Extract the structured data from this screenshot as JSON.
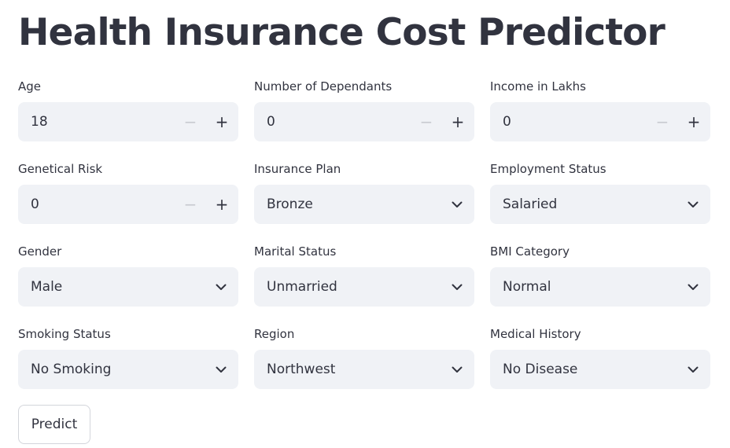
{
  "page": {
    "title": "Health Insurance Cost Predictor"
  },
  "fields": [
    {
      "label": "Age",
      "value": "18",
      "type": "number"
    },
    {
      "label": "Number of Dependants",
      "value": "0",
      "type": "number"
    },
    {
      "label": "Income in Lakhs",
      "value": "0",
      "type": "number"
    },
    {
      "label": "Genetical Risk",
      "value": "0",
      "type": "number"
    },
    {
      "label": "Insurance Plan",
      "value": "Bronze",
      "type": "select"
    },
    {
      "label": "Employment Status",
      "value": "Salaried",
      "type": "select"
    },
    {
      "label": "Gender",
      "value": "Male",
      "type": "select"
    },
    {
      "label": "Marital Status",
      "value": "Unmarried",
      "type": "select"
    },
    {
      "label": "BMI Category",
      "value": "Normal",
      "type": "select"
    },
    {
      "label": "Smoking Status",
      "value": "No Smoking",
      "type": "select"
    },
    {
      "label": "Region",
      "value": "Northwest",
      "type": "select"
    },
    {
      "label": "Medical History",
      "value": "No Disease",
      "type": "select"
    }
  ],
  "stepper": {
    "minus_symbol": "−",
    "plus_symbol": "+"
  },
  "actions": {
    "predict_label": "Predict"
  },
  "icons": {
    "decrement": "minus-icon",
    "increment": "plus-icon",
    "dropdown": "chevron-down-icon"
  },
  "colors": {
    "background": "#ffffff",
    "input_background": "#f0f2f6",
    "text": "#31333f",
    "disabled_icon": "#c8cad0",
    "button_border": "#d3d5db"
  }
}
